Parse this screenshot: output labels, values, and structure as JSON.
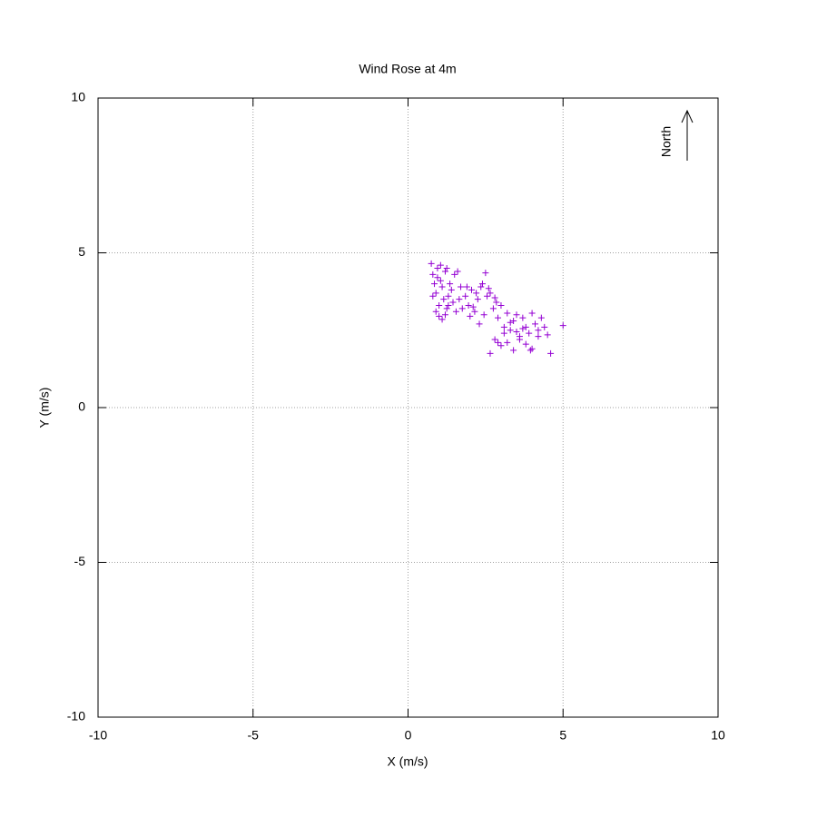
{
  "chart_data": {
    "type": "scatter",
    "title": "Wind Rose at 4m",
    "xlabel": "X (m/s)",
    "ylabel": "Y (m/s)",
    "annotations": [
      "North"
    ],
    "xlim": [
      -10,
      10
    ],
    "ylim": [
      -10,
      10
    ],
    "xticks": [
      -10,
      -5,
      0,
      5,
      10
    ],
    "yticks": [
      -10,
      -5,
      0,
      5,
      10
    ],
    "grid": true,
    "series": [
      {
        "color": "#9400d3",
        "x": [
          0.75,
          0.8,
          0.85,
          0.9,
          0.95,
          1.0,
          1.05,
          1.1,
          1.15,
          1.2,
          1.25,
          1.3,
          1.35,
          1.4,
          1.5,
          1.6,
          1.7,
          0.8,
          0.9,
          1.0,
          1.1,
          1.2,
          1.3,
          1.45,
          1.55,
          1.65,
          1.75,
          0.95,
          1.05,
          1.25,
          1.85,
          1.95,
          2.05,
          2.15,
          2.25,
          2.35,
          2.45,
          2.55,
          2.65,
          2.75,
          2.85,
          2.0,
          2.2,
          2.4,
          2.6,
          2.8,
          2.5,
          2.3,
          2.1,
          1.9,
          2.9,
          3.0,
          3.1,
          3.2,
          3.3,
          3.4,
          3.5,
          3.6,
          3.7,
          3.8,
          3.9,
          4.0,
          4.1,
          4.2,
          4.3,
          4.4,
          3.0,
          3.2,
          3.4,
          3.6,
          3.8,
          4.0,
          4.2,
          3.5,
          3.3,
          3.7,
          3.1,
          2.9,
          4.5,
          5.0,
          4.6,
          2.65,
          2.8,
          3.95
        ],
        "values": [
          4.65,
          4.3,
          4.0,
          3.7,
          4.5,
          3.3,
          4.1,
          3.9,
          3.5,
          4.4,
          3.2,
          3.6,
          4.0,
          3.8,
          4.3,
          4.4,
          3.9,
          3.6,
          3.1,
          2.95,
          2.85,
          3.0,
          3.3,
          3.4,
          3.1,
          3.5,
          3.2,
          4.2,
          4.6,
          4.5,
          3.6,
          3.3,
          3.8,
          3.1,
          3.5,
          3.9,
          3.0,
          3.6,
          3.7,
          3.2,
          3.4,
          2.95,
          3.7,
          4.0,
          3.85,
          3.55,
          4.35,
          2.7,
          3.25,
          3.9,
          2.9,
          3.3,
          2.6,
          3.05,
          2.5,
          2.8,
          3.0,
          2.3,
          2.9,
          2.6,
          2.4,
          3.05,
          2.7,
          2.5,
          2.9,
          2.6,
          2.0,
          2.1,
          1.85,
          2.2,
          2.05,
          1.9,
          2.3,
          2.45,
          2.75,
          2.55,
          2.4,
          2.1,
          2.35,
          2.65,
          1.75,
          1.75,
          2.2,
          1.85
        ]
      }
    ]
  }
}
